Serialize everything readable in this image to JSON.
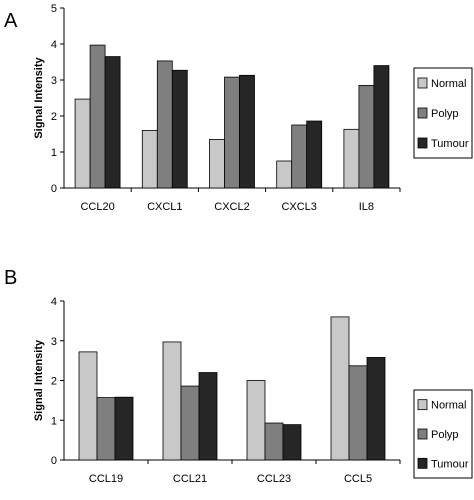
{
  "chart_data": [
    {
      "panel_label": "A",
      "type": "bar",
      "ylabel": "Signal Intensity",
      "xlabel": "",
      "ylim": [
        0,
        5
      ],
      "yticks": [
        "0",
        "1",
        "2",
        "3",
        "4",
        "5"
      ],
      "categories": [
        "CCL20",
        "CXCL1",
        "CXCL2",
        "CXCL3",
        "IL8"
      ],
      "series": [
        {
          "name": "Normal",
          "color": "#c8c8c8",
          "values": [
            2.47,
            1.6,
            1.35,
            0.75,
            1.63
          ]
        },
        {
          "name": "Polyp",
          "color": "#7f7f7f",
          "values": [
            3.97,
            3.53,
            3.08,
            1.75,
            2.85
          ]
        },
        {
          "name": "Tumour",
          "color": "#262626",
          "values": [
            3.65,
            3.27,
            3.13,
            1.86,
            3.4
          ]
        }
      ],
      "legend": "right",
      "grid": false
    },
    {
      "panel_label": "B",
      "type": "bar",
      "ylabel": "Signal Intensity",
      "xlabel": "",
      "ylim": [
        0,
        4
      ],
      "yticks": [
        "0",
        "1",
        "2",
        "3",
        "4"
      ],
      "categories": [
        "CCL19",
        "CCL21",
        "CCL23",
        "CCL5"
      ],
      "series": [
        {
          "name": "Normal",
          "color": "#c8c8c8",
          "values": [
            2.72,
            2.97,
            2.0,
            3.6
          ]
        },
        {
          "name": "Polyp",
          "color": "#7f7f7f",
          "values": [
            1.57,
            1.86,
            0.93,
            2.37
          ]
        },
        {
          "name": "Tumour",
          "color": "#262626",
          "values": [
            1.58,
            2.2,
            0.89,
            2.58
          ]
        }
      ],
      "legend": "right",
      "grid": false
    }
  ]
}
